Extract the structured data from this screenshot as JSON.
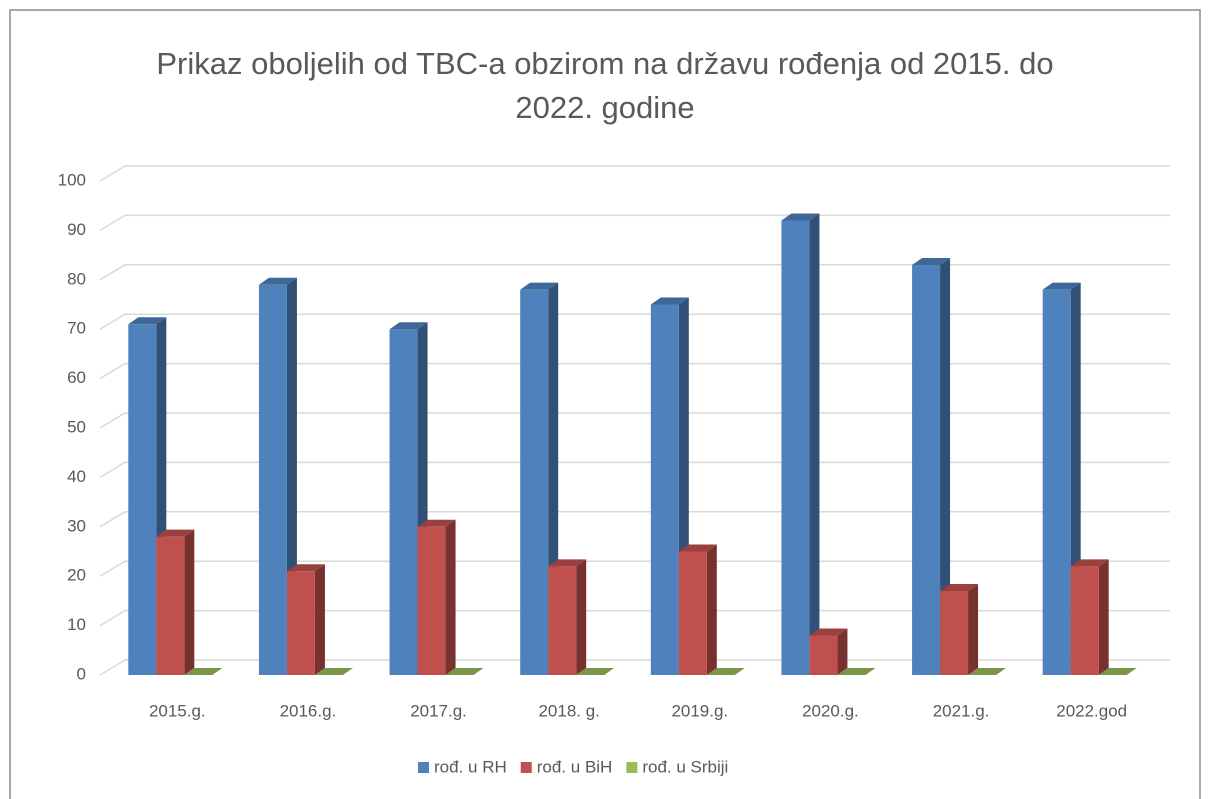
{
  "chart_data": {
    "type": "bar3d",
    "title": "Prikaz oboljelih od TBC-a obzirom na državu rođenja od 2015. do 2022. godine",
    "categories": [
      "2015.g.",
      "2016.g.",
      "2017.g.",
      "2018. g.",
      "2019.g.",
      "2020.g.",
      "2021.g.",
      "2022.god"
    ],
    "series": [
      {
        "name": "rođ. u RH",
        "color": "#4f81bd",
        "values": [
          71,
          79,
          70,
          78,
          75,
          92,
          83,
          78
        ]
      },
      {
        "name": "rođ. u BiH",
        "color": "#c0504d",
        "values": [
          28,
          21,
          30,
          22,
          25,
          8,
          17,
          22
        ]
      },
      {
        "name": "rođ. u Srbiji",
        "color": "#9bbb59",
        "values": [
          0,
          0,
          0,
          0,
          0,
          0,
          0,
          0
        ]
      }
    ],
    "ylim": [
      0,
      100
    ],
    "yticks": [
      0,
      10,
      20,
      30,
      40,
      50,
      60,
      70,
      80,
      90,
      100
    ],
    "grid": true,
    "legend": "bottom"
  }
}
